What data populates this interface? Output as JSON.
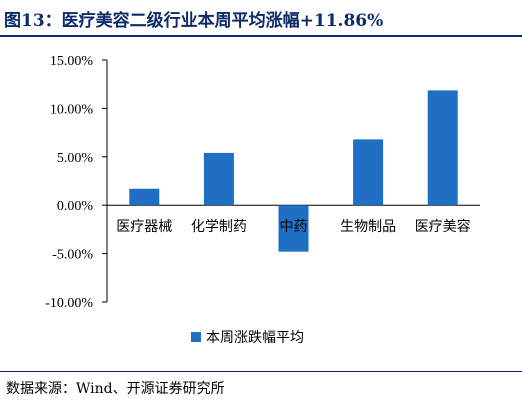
{
  "header": {
    "title": "图13：医疗美容二级行业本周平均涨幅+11.86%"
  },
  "footer": {
    "source": "数据来源：Wind、开源证券研究所"
  },
  "chart_data": {
    "type": "bar",
    "categories": [
      "医疗器械",
      "化学制药",
      "中药",
      "生物制品",
      "医疗美容"
    ],
    "series": [
      {
        "name": "本周涨跌幅平均",
        "values": [
          1.7,
          5.4,
          -4.8,
          6.8,
          11.86
        ]
      }
    ],
    "ylim": [
      -10,
      15
    ],
    "yticks": [
      15,
      10,
      5,
      0,
      -5,
      -10
    ],
    "ytick_labels": [
      "15.00%",
      "10.00%",
      "5.00%",
      "0.00%",
      "-5.00%",
      "-10.00%"
    ],
    "xlabel": "",
    "ylabel": "",
    "grid": false,
    "legend_position": "bottom",
    "bar_color": "#1f6fc5"
  }
}
